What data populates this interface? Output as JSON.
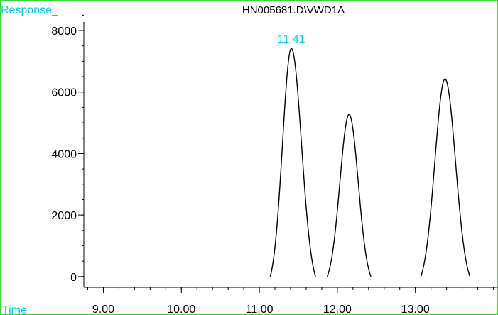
{
  "chart_data": {
    "type": "line",
    "title": "HN005681.D\\VWD1A",
    "ylabel": "Response_",
    "xlabel": "Time",
    "xlim": [
      8.75,
      14.05
    ],
    "ylim": [
      -350,
      8900
    ],
    "x_ticks": [
      "9.00",
      "10.00",
      "11.00",
      "12.00",
      "13.00"
    ],
    "y_ticks": [
      "0",
      "2000",
      "4000",
      "6000",
      "8000"
    ],
    "x_minor_step": 0.2,
    "y_minor_step": 500,
    "annotations": [
      {
        "text": "11.41",
        "x": 11.41,
        "y": 7420
      }
    ],
    "peaks": [
      {
        "rt": 11.41,
        "height": 7420,
        "start": 11.14,
        "end": 11.72
      },
      {
        "rt": 12.15,
        "height": 5270,
        "start": 11.87,
        "end": 12.43
      },
      {
        "rt": 13.38,
        "height": 6430,
        "start": 13.07,
        "end": 13.7
      }
    ],
    "colors": {
      "trace": "#000000",
      "axis": "#000000",
      "frame": "#33dd33",
      "label": "#00ccee"
    },
    "grid": false,
    "legend": "none"
  }
}
